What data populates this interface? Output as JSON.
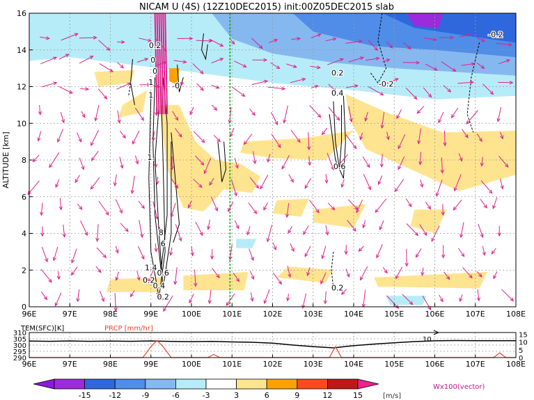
{
  "chart_data": [
    {
      "type": "heatmap",
      "title": "NICAM U (4S) (12Z10DEC2015) init:00Z05DEC2015 slab",
      "ylabel": "ALTITUDE [km]",
      "xlim": [
        96,
        108
      ],
      "ylim": [
        0,
        16
      ],
      "x_ticks": [
        "96E",
        "97E",
        "98E",
        "99E",
        "100E",
        "101E",
        "102E",
        "103E",
        "104E",
        "105E",
        "106E",
        "107E",
        "108E"
      ],
      "y_ticks": [
        "0",
        "2",
        "4",
        "6",
        "8",
        "10",
        "12",
        "14",
        "16"
      ],
      "grid": true,
      "reference_line_lon": 100.95,
      "contour_labels": [
        {
          "text": "0.2",
          "lon": 99.1,
          "alt": 14.1
        },
        {
          "text": "0",
          "lon": 99.05,
          "alt": 13.3
        },
        {
          "text": "0",
          "lon": 99.1,
          "alt": 12.7
        },
        {
          "text": "1",
          "lon": 99.0,
          "alt": 12.1
        },
        {
          "text": "1",
          "lon": 99.0,
          "alt": 11.4
        },
        {
          "text": "0",
          "lon": 99.65,
          "alt": 11.9
        },
        {
          "text": "1.",
          "lon": 99.0,
          "alt": 8.0
        },
        {
          "text": "8",
          "lon": 99.25,
          "alt": 3.9
        },
        {
          "text": "6",
          "lon": 99.3,
          "alt": 3.3
        },
        {
          "text": "1.4",
          "lon": 99.0,
          "alt": 2.0
        },
        {
          "text": "0.6",
          "lon": 99.3,
          "alt": 1.7
        },
        {
          "text": "0.2",
          "lon": 98.95,
          "alt": 1.3
        },
        {
          "text": "0.4",
          "lon": 99.2,
          "alt": 1.0
        },
        {
          "text": "0.2",
          "lon": 99.3,
          "alt": 0.4
        },
        {
          "text": "0.2",
          "lon": 103.6,
          "alt": 12.6
        },
        {
          "text": "0.4",
          "lon": 103.6,
          "alt": 11.5
        },
        {
          "text": "0.6",
          "lon": 103.65,
          "alt": 7.5
        },
        {
          "text": "0.2",
          "lon": 103.6,
          "alt": 0.9
        },
        {
          "text": "-0.2",
          "lon": 104.8,
          "alt": 12.0
        },
        {
          "text": "-0.2",
          "lon": 107.5,
          "alt": 14.7
        }
      ]
    },
    {
      "type": "line",
      "left_label": "TEM(SFC)[K]",
      "right_label": "PRCP [mm/hr]",
      "xlim": [
        96,
        108
      ],
      "y_left_ticks": [
        "310",
        "305",
        "300",
        "295",
        "290"
      ],
      "y_left_range": [
        290,
        310
      ],
      "y_right_ticks": [
        "15",
        "10",
        "5",
        "0"
      ],
      "y_right_range": [
        0,
        16
      ],
      "x_ticks": [
        "96E",
        "97E",
        "98E",
        "99E",
        "100E",
        "101E",
        "102E",
        "103E",
        "104E",
        "105E",
        "106E",
        "107E",
        "108E"
      ],
      "annotation": "10",
      "series": [
        {
          "name": "TEM(SFC)",
          "color": "#000000",
          "x": [
            96.0,
            96.5,
            97.0,
            97.5,
            98.0,
            98.5,
            99.0,
            99.5,
            100.0,
            100.5,
            101.0,
            101.5,
            102.0,
            102.5,
            103.0,
            103.5,
            104.0,
            104.5,
            105.0,
            105.5,
            106.0,
            106.5,
            107.0,
            107.5,
            108.0
          ],
          "y": [
            303.2,
            303.0,
            303.3,
            303.0,
            303.2,
            303.0,
            303.3,
            302.9,
            302.7,
            302.9,
            302.5,
            302.2,
            301.5,
            300.0,
            298.7,
            297.8,
            299.5,
            300.8,
            301.8,
            302.8,
            303.4,
            303.6,
            303.5,
            303.5,
            303.5
          ]
        },
        {
          "name": "PRCP",
          "color": "#e8462a",
          "x": [
            96.0,
            98.8,
            99.0,
            99.15,
            99.3,
            99.5,
            100.4,
            100.55,
            100.7,
            103.4,
            103.55,
            103.7,
            107.45,
            107.6,
            107.75,
            108.0
          ],
          "y": [
            0,
            0,
            7,
            11,
            7,
            0,
            0,
            2,
            0,
            0,
            7,
            0,
            0,
            3,
            0,
            0
          ]
        }
      ]
    },
    {
      "type": "colorbar",
      "labels": [
        "-15",
        "-12",
        "-9",
        "-6",
        "-3",
        "3",
        "6",
        "9",
        "12",
        "15"
      ],
      "colors": [
        "#9b2bdc",
        "#2f68dc",
        "#4f8de8",
        "#86b8f0",
        "#b6ecf8",
        "#ffffff",
        "#ffe490",
        "#ffa200",
        "#ff4a1e",
        "#c01818"
      ],
      "left_arrow_color": "#8c18e0",
      "right_arrow_color": "#ee2290",
      "unit": "[m/s]",
      "vector_note": "Wx100(vector)"
    }
  ]
}
